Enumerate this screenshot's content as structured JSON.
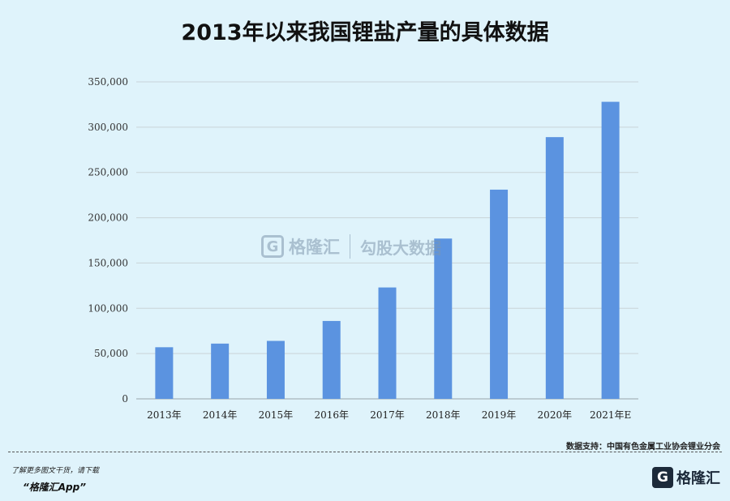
{
  "title": "2013年以来我国锂盐产量的具体数据",
  "source": "数据支持：中国有色金属工业协会锂业分会",
  "footer": {
    "note": "了解更多图文干货，请下载",
    "app": "“格隆汇App”",
    "logo_text": "格隆汇",
    "logo_mark": "G"
  },
  "watermark": {
    "logo_mark": "G",
    "brand": "格隆汇",
    "brand2": "勾股大数据"
  },
  "colors": {
    "bar": "#5b93e0",
    "background": "#dff3fb",
    "grid": "#c9d3d8"
  },
  "chart_data": {
    "type": "bar",
    "categories": [
      "2013年",
      "2014年",
      "2015年",
      "2016年",
      "2017年",
      "2018年",
      "2019年",
      "2020年",
      "2021年E"
    ],
    "values": [
      57000,
      61000,
      64000,
      86000,
      123000,
      177000,
      231000,
      289000,
      328000
    ],
    "ylim": [
      0,
      350000
    ],
    "yticks": [
      0,
      50000,
      100000,
      150000,
      200000,
      250000,
      300000,
      350000
    ],
    "ytick_labels": [
      "0",
      "50,000",
      "100,000",
      "150,000",
      "200,000",
      "250,000",
      "300,000",
      "350,000"
    ],
    "grid": true,
    "legend": "none"
  }
}
